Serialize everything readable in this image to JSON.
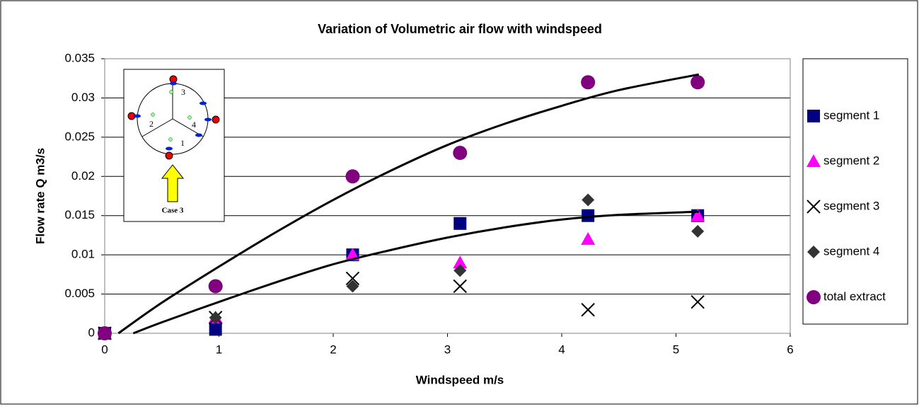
{
  "chart_data": {
    "type": "scatter",
    "title": "Variation of Volumetric air flow with windspeed",
    "xlabel": "Windspeed m/s",
    "ylabel": "Flow rate Q m3/s",
    "x": [
      0,
      0.97,
      2.17,
      3.11,
      4.23,
      5.19
    ],
    "series": [
      {
        "name": "segment 1",
        "color": "#000080",
        "marker": "square",
        "values": [
          0,
          0.0005,
          0.01,
          0.014,
          0.015,
          0.015
        ]
      },
      {
        "name": "segment 2",
        "color": "#ff00ff",
        "marker": "triangle",
        "values": [
          0,
          0.002,
          0.01,
          0.009,
          0.012,
          0.015
        ]
      },
      {
        "name": "segment 3",
        "color": "#000000",
        "marker": "cross",
        "values": [
          0,
          0.002,
          0.007,
          0.006,
          0.003,
          0.004
        ]
      },
      {
        "name": "segment 4",
        "color": "#333333",
        "marker": "diamond",
        "values": [
          0,
          0.002,
          0.006,
          0.008,
          0.017,
          0.013
        ]
      },
      {
        "name": "total extract",
        "color": "#800080",
        "marker": "circle",
        "values": [
          0,
          0.006,
          0.02,
          0.023,
          0.032,
          0.032
        ]
      }
    ],
    "trendlines": [
      {
        "color": "#000000",
        "x": [
          0.12,
          0.5,
          1,
          1.5,
          2,
          2.5,
          3,
          3.5,
          4,
          4.5,
          5.2
        ],
        "values": [
          0,
          0.0039,
          0.0085,
          0.0129,
          0.017,
          0.0207,
          0.024,
          0.0267,
          0.029,
          0.031,
          0.033
        ]
      },
      {
        "color": "#000000",
        "x": [
          0.25,
          0.5,
          1,
          1.5,
          2,
          2.5,
          3,
          3.5,
          4,
          4.5,
          5.2
        ],
        "values": [
          0,
          0.0014,
          0.004,
          0.0065,
          0.0088,
          0.0106,
          0.0122,
          0.0135,
          0.0145,
          0.0151,
          0.0155
        ]
      }
    ],
    "xlim": [
      0,
      6
    ],
    "xticks": [
      0,
      1,
      2,
      3,
      4,
      5,
      6
    ],
    "ylim": [
      0,
      0.035
    ],
    "yticks": [
      0,
      0.005,
      0.01,
      0.015,
      0.02,
      0.025,
      0.03,
      0.035
    ],
    "grid": true,
    "legend": "right",
    "inset": {
      "labels": [
        "3",
        "2",
        "4",
        "1"
      ],
      "caption": "Case 3"
    }
  }
}
